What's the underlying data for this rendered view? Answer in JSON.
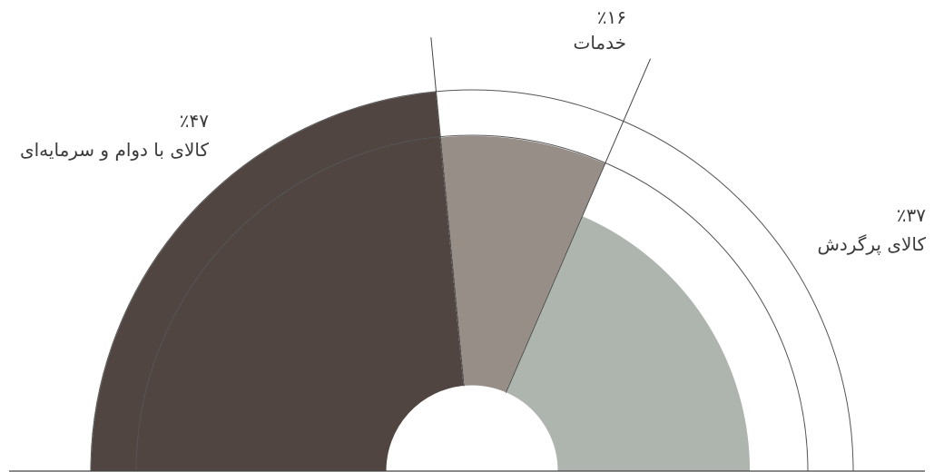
{
  "chart_data": {
    "type": "pie",
    "subtype": "semicircle",
    "title": "",
    "categories": [
      "کالای با دوام و سرمایه‌ای",
      "خدمات",
      "کالای پرگردش"
    ],
    "values": [
      47,
      16,
      37
    ],
    "value_labels": [
      "٪۴۷",
      "٪۱۶",
      "٪۳۷"
    ],
    "colors": [
      "#504541",
      "#968e87",
      "#adb5ae"
    ],
    "radii": [
      1,
      0.88,
      0.73
    ],
    "legend": "none"
  }
}
